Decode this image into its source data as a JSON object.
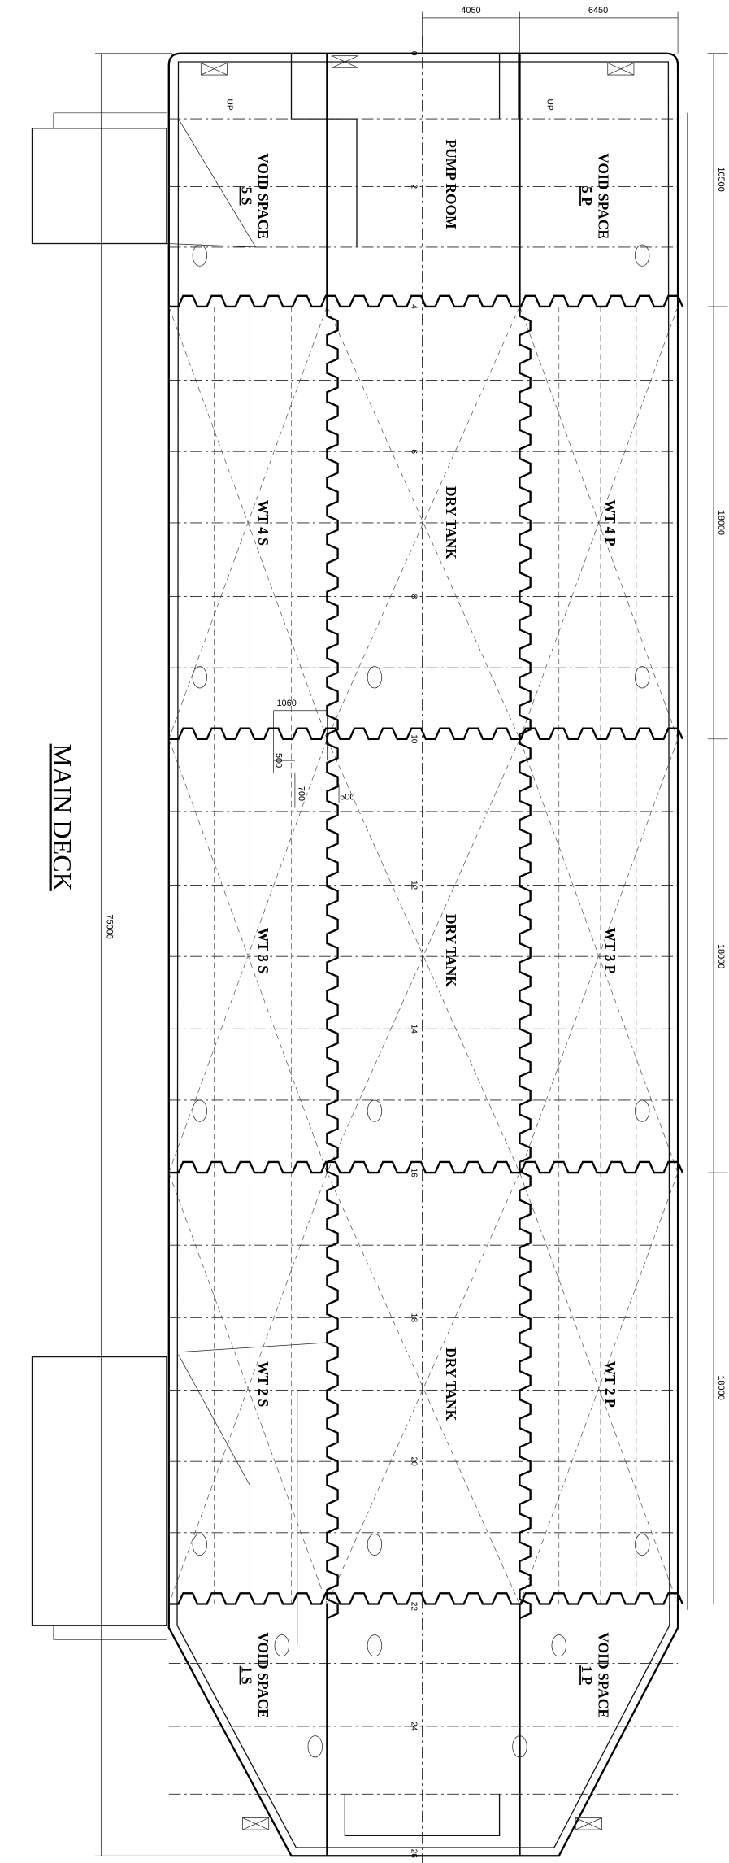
{
  "title": "MAIN DECK",
  "dimensions": {
    "top": [
      "4050",
      "6450"
    ],
    "right": [
      "10500",
      "18000",
      "18000",
      "18000"
    ],
    "overall": "75000",
    "detail": [
      "1060",
      "500",
      "700",
      "500"
    ]
  },
  "frames": [
    "0",
    "2",
    "4",
    "6",
    "8",
    "10",
    "12",
    "14",
    "16",
    "18",
    "20",
    "22",
    "24",
    "26"
  ],
  "up_labels": [
    "UP",
    "UP"
  ],
  "compartments": [
    {
      "name": "VOID SPACE",
      "number": "5 S"
    },
    {
      "name": "PUMP ROOM"
    },
    {
      "name": "VOID SPACE",
      "number": "5 P"
    },
    {
      "name": "WT 4 S"
    },
    {
      "name": "DRY TANK"
    },
    {
      "name": "WT 4 P"
    },
    {
      "name": "WT 3 S"
    },
    {
      "name": "DRY TANK"
    },
    {
      "name": "WT 3 P"
    },
    {
      "name": "WT 2 S"
    },
    {
      "name": "DRY TANK"
    },
    {
      "name": "WT 2 P"
    },
    {
      "name": "VOID SPACE",
      "number": "1 S"
    },
    {
      "name": "VOID SPACE",
      "number": "1 P"
    }
  ]
}
